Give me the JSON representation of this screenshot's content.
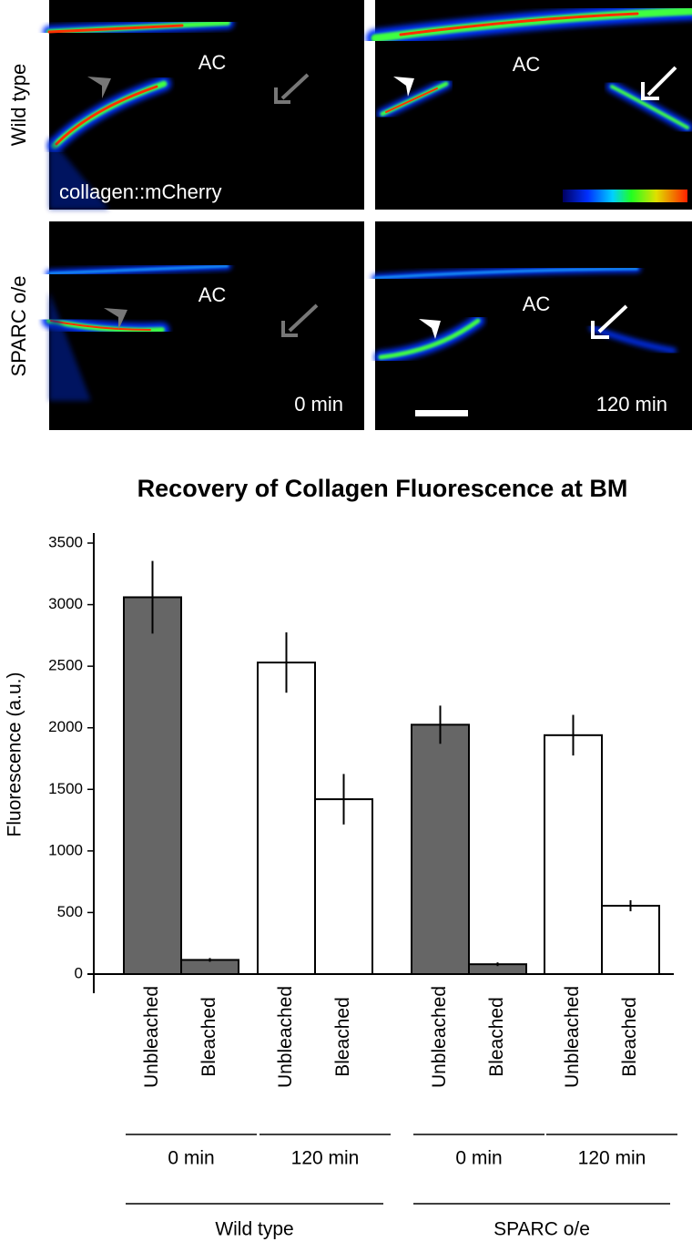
{
  "panels": {
    "rows": [
      "Wild type",
      "SPARC o/e"
    ],
    "region": [
      "AC",
      "AC",
      "AC",
      "AC"
    ],
    "marker": "collagen::mCherry",
    "times": [
      "0 min",
      "120 min"
    ]
  },
  "chart_data": {
    "type": "bar",
    "title": "Recovery of Collagen Fluorescence at BM",
    "y_label": "Fluorescence (a.u.)",
    "categories": [
      "Unbleached",
      "Bleached",
      "Unbleached",
      "Bleached",
      "Unbleached",
      "Bleached",
      "Unbleached",
      "Bleached"
    ],
    "time_groups": [
      "0 min",
      "120 min",
      "0 min",
      "120 min"
    ],
    "strain_groups": [
      "Wild type",
      "SPARC o/e"
    ],
    "values": [
      3060,
      115,
      2530,
      1420,
      2025,
      80,
      1940,
      555
    ],
    "errors": [
      295,
      15,
      245,
      205,
      155,
      15,
      165,
      45
    ],
    "colors": [
      "#666666",
      "#666666",
      "#ffffff",
      "#ffffff",
      "#666666",
      "#666666",
      "#ffffff",
      "#ffffff"
    ],
    "ylim": [
      0,
      3500
    ],
    "yticks": [
      0,
      500,
      1000,
      1500,
      2000,
      2500,
      3000,
      3500
    ]
  }
}
